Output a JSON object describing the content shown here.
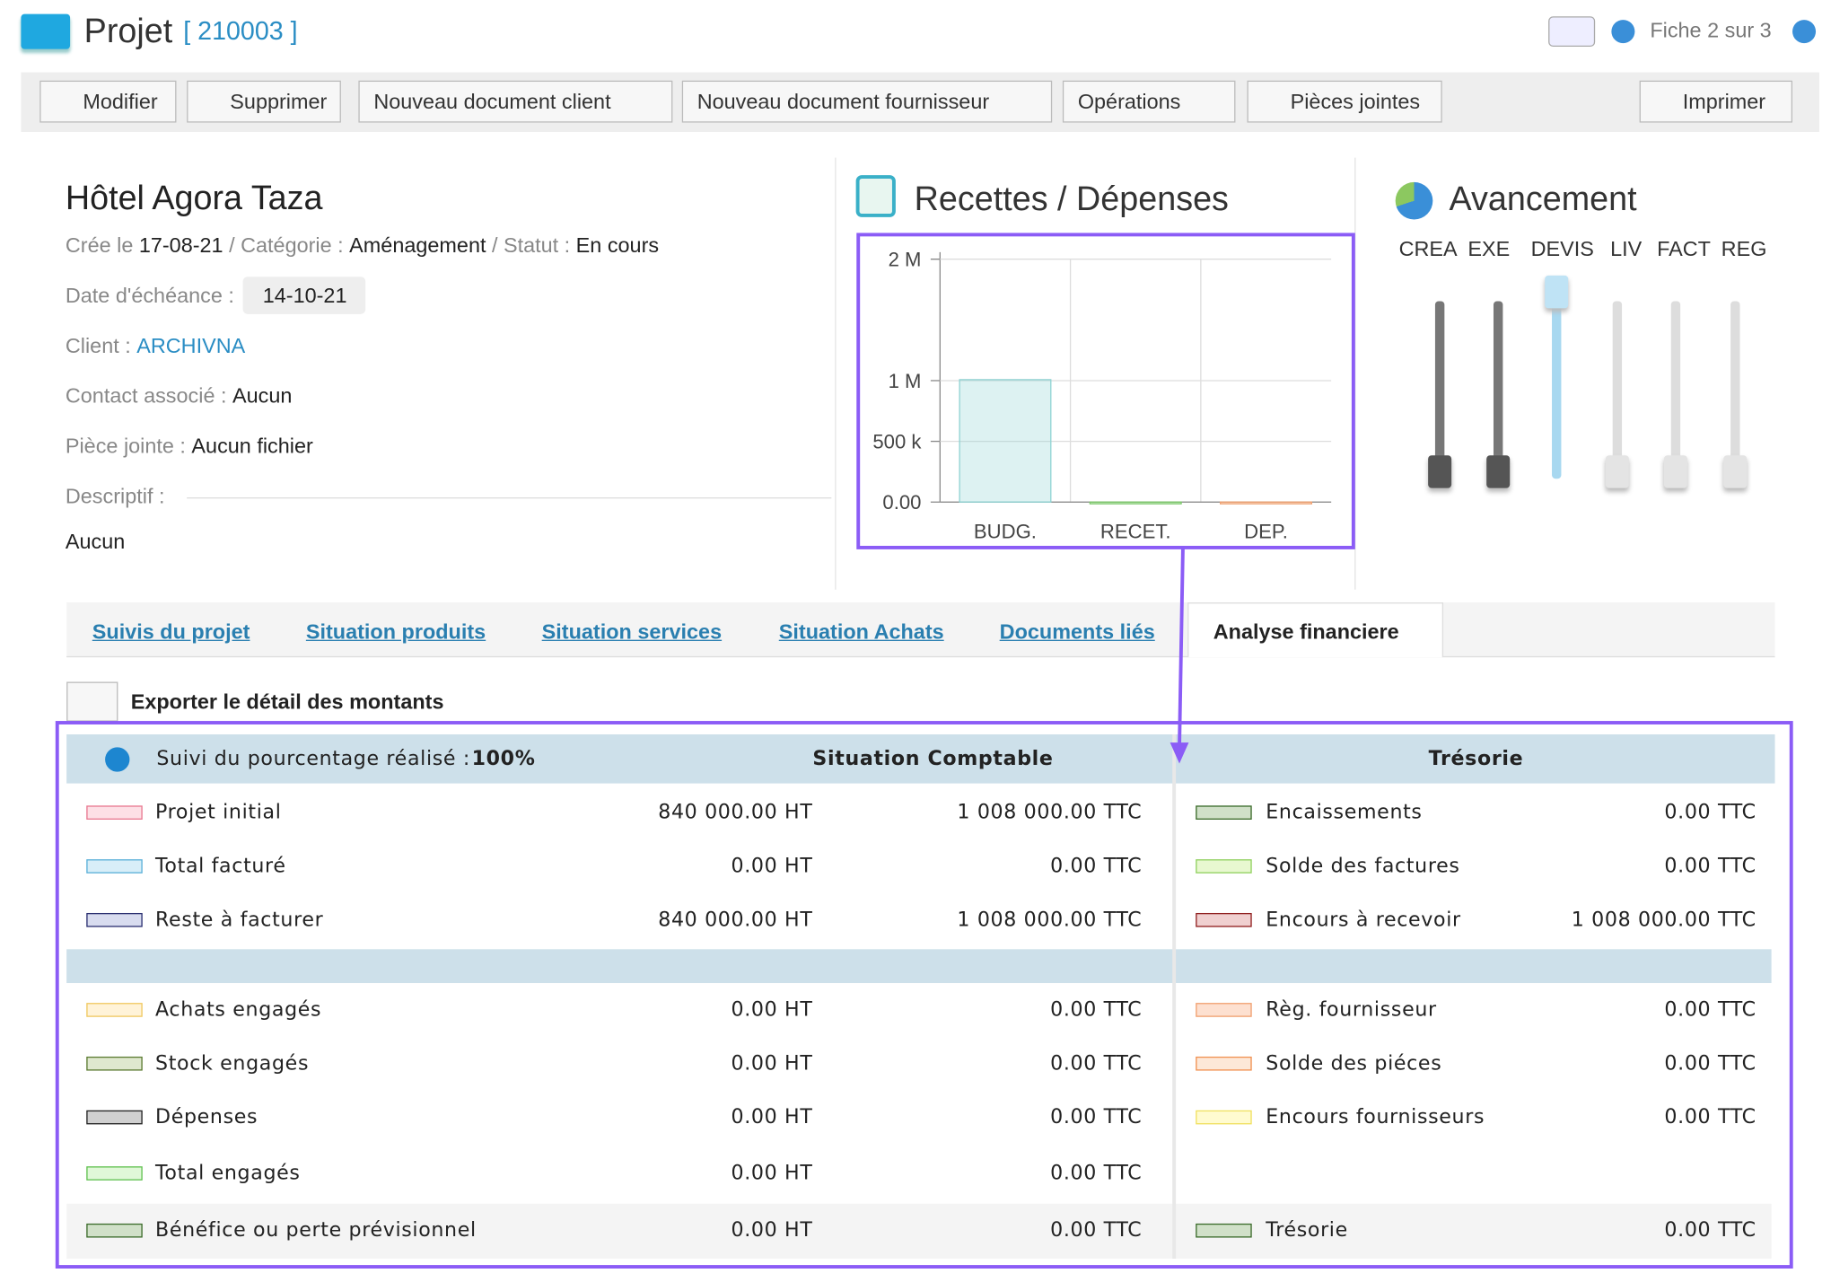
{
  "header": {
    "title": "Projet",
    "code": "[ 210003 ]",
    "pager": "Fiche 2 sur 3"
  },
  "toolbar": {
    "buttons": [
      "Modifier",
      "Supprimer",
      "Nouveau document client",
      "Nouveau document fournisseur",
      "Opérations",
      "Pièces jointes",
      "Imprimer"
    ]
  },
  "project": {
    "name": "Hôtel Agora Taza",
    "created_label": "Crée le",
    "created": "17-08-21",
    "category_label": "/ Catégorie :",
    "category": "Aménagement",
    "status_label": "/ Statut :",
    "status": "En cours",
    "due_label": "Date d'échéance :",
    "due": "14-10-21",
    "client_label": "Client :",
    "client": "ARCHIVNA",
    "contact_label": "Contact associé :",
    "contact": "Aucun",
    "attachment_label": "Pièce jointe :",
    "attachment": "Aucun fichier",
    "description_label": "Descriptif :",
    "description": "Aucun"
  },
  "chart_data": {
    "type": "bar",
    "title": "Recettes / Dépenses",
    "categories": [
      "BUDG.",
      "RECET.",
      "DEP."
    ],
    "values": [
      1008000,
      0,
      0
    ],
    "colors": [
      "#8fd3d3",
      "#7cc96a",
      "#f0a070"
    ],
    "ylim": [
      0,
      2000000
    ],
    "yticks": [
      {
        "value": 0,
        "label": "0.00"
      },
      {
        "value": 500000,
        "label": "500 k"
      },
      {
        "value": 1000000,
        "label": "1 M"
      },
      {
        "value": 2000000,
        "label": "2 M"
      }
    ],
    "grid": true
  },
  "progress": {
    "title": "Avancement",
    "steps": [
      {
        "label": "CREA",
        "state": "done"
      },
      {
        "label": "EXE",
        "state": "done"
      },
      {
        "label": "DEVIS",
        "state": "current"
      },
      {
        "label": "LIV",
        "state": "todo"
      },
      {
        "label": "FACT",
        "state": "todo"
      },
      {
        "label": "REG",
        "state": "todo"
      }
    ]
  },
  "tabs": {
    "items": [
      "Suivis du projet",
      "Situation produits",
      "Situation services",
      "Situation Achats",
      "Documents liés",
      "Analyse financiere"
    ],
    "active": 5
  },
  "export": "Exporter le détail des montants",
  "table": {
    "progress_label": "Suivi du pourcentage réalisé :",
    "progress_value": "100%",
    "left_title": "Situation Comptable",
    "right_title": "Trésorie",
    "left_rows": [
      [
        "Projet initial",
        "840 000.00 HT",
        "1 008 000.00 TTC",
        "#fde0e6",
        "#e87890"
      ],
      [
        "Total facturé",
        "0.00 HT",
        "0.00 TTC",
        "#d8eef8",
        "#5ab0d8"
      ],
      [
        "Reste à facturer",
        "840 000.00 HT",
        "1 008 000.00 TTC",
        "#d8dcef",
        "#2a2f70"
      ],
      [
        "Achats engagés",
        "0.00 HT",
        "0.00 TTC",
        "#fff3d8",
        "#f0c860"
      ],
      [
        "Stock engagés",
        "0.00 HT",
        "0.00 TTC",
        "#dfe8cf",
        "#5a7a30"
      ],
      [
        "Dépenses",
        "0.00 HT",
        "0.00 TTC",
        "#d0d0d0",
        "#222222"
      ],
      [
        "Total engagés",
        "0.00 HT",
        "0.00 TTC",
        "#e0f8d8",
        "#60c050"
      ],
      [
        "Bénéfice ou perte prévisionnel",
        "0.00 HT",
        "0.00 TTC",
        "#d0e0c8",
        "#3a6a2a"
      ]
    ],
    "right_rows": [
      [
        "Encaissements",
        "0.00 TTC",
        "#d0e0c8",
        "#3a6a2a"
      ],
      [
        "Solde des factures",
        "0.00 TTC",
        "#e8f8d0",
        "#90d060"
      ],
      [
        "Encours à recevoir",
        "1 008 000.00 TTC",
        "#f0d0d0",
        "#902020"
      ],
      [
        "Règ. fournisseur",
        "0.00 TTC",
        "#fde0d0",
        "#f0a070"
      ],
      [
        "Solde des piéces",
        "0.00 TTC",
        "#fde8d8",
        "#f09050"
      ],
      [
        "Encours fournisseurs",
        "0.00 TTC",
        "#fffbd0",
        "#f0e060"
      ]
    ],
    "right_total": [
      "Trésorie",
      "0.00 TTC",
      "#d0e0c8",
      "#3a6a2a"
    ]
  }
}
